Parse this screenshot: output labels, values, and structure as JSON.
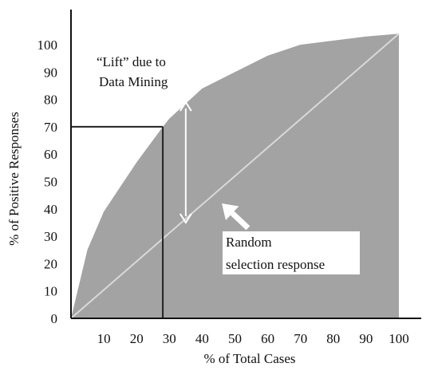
{
  "chart_data": {
    "type": "area",
    "xlabel": "% of Total Cases",
    "ylabel": "% of Positive Responses",
    "xlim": [
      0,
      100
    ],
    "ylim": [
      0,
      100
    ],
    "x_ticks": [
      10,
      20,
      30,
      40,
      50,
      60,
      70,
      80,
      90,
      100
    ],
    "y_ticks": [
      0,
      10,
      20,
      30,
      40,
      50,
      60,
      70,
      80,
      90,
      100
    ],
    "lift_curve": {
      "x": [
        0,
        5,
        10,
        20,
        28,
        30,
        40,
        50,
        60,
        70,
        80,
        90,
        100
      ],
      "y": [
        0,
        25,
        39,
        57,
        70,
        73,
        84,
        90,
        96,
        100,
        101.5,
        103,
        104
      ]
    },
    "random_line": {
      "x": [
        0,
        100
      ],
      "y": [
        0,
        104
      ]
    },
    "reference_point": {
      "x": 28,
      "y": 70
    },
    "lift_arrow": {
      "x": 35,
      "y_from": 35,
      "y_to": 79
    },
    "pointer_arrow": {
      "x_from": 54,
      "y_from": 33,
      "x_to": 46,
      "y_to": 42
    },
    "annotations": {
      "lift_label": [
        "“Lift” due to",
        "Data Mining"
      ],
      "random_label": [
        "Random",
        "selection response"
      ]
    },
    "colors": {
      "lift_fill": "#a3a3a3",
      "random_line": "#d9d9d9",
      "axes": "#111111",
      "reference_lines": "#222222",
      "arrows": "#ffffff"
    }
  }
}
